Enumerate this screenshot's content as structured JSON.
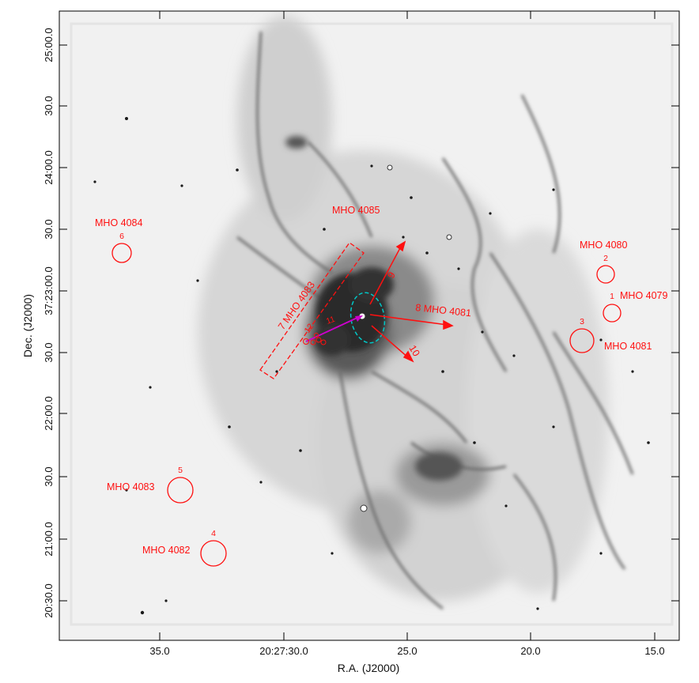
{
  "axes": {
    "x_title": "R.A. (J2000)",
    "y_title": "Dec. (J2000)",
    "x_ticks": [
      "35.0",
      "20:27:30.0",
      "25.0",
      "20.0",
      "15.0"
    ],
    "y_ticks": [
      "25:00.0",
      "30.0",
      "24:00.0",
      "30.0",
      "37:23:00.0",
      "30.0",
      "22:00.0",
      "30.0",
      "21:00.0",
      "20:30.0"
    ]
  },
  "sources": {
    "numbers": [
      "1",
      "2",
      "3",
      "4",
      "5",
      "6"
    ],
    "labels": {
      "mho4079": "MHO 4079",
      "mho4080": "MHO 4080",
      "mho4081_right": "MHO 4081",
      "mho4082": "MHO 4082",
      "mho4083_left": "MHO 4083",
      "mho4084": "MHO 4084",
      "mho4085": "MHO 4085"
    }
  },
  "outflows": {
    "box_label": "7  MHO 4083",
    "arrow9": "9",
    "arrow8": "8  MHO 4081",
    "arrow10": "10",
    "knot11": "11",
    "knot12": "12"
  },
  "colors": {
    "annotation_red": "#ff1010",
    "ellipse_cyan": "#00c8c8",
    "jet_magenta": "#cc00cc",
    "nebula_dark": "#1a1a1a"
  }
}
